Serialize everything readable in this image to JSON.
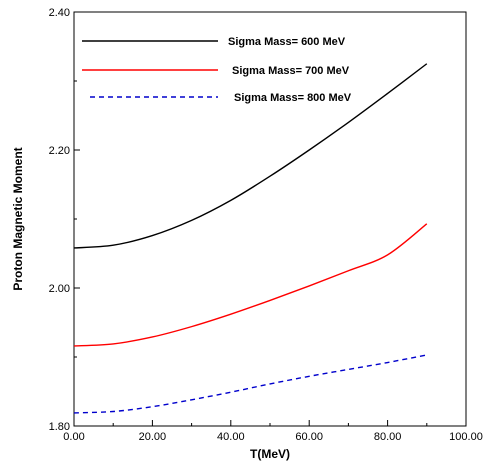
{
  "chart_data": {
    "type": "line",
    "title": "",
    "xlabel": "T(MeV)",
    "ylabel": "Proton Magnetic Moment",
    "xlim": [
      0,
      100
    ],
    "ylim": [
      1.8,
      2.4
    ],
    "x_ticks": [
      "0.00",
      "20.00",
      "40.00",
      "60.00",
      "80.00",
      "100.00"
    ],
    "y_ticks": [
      "1.80",
      "2.00",
      "2.20",
      "2.40"
    ],
    "grid": false,
    "legend_position": "top-left",
    "x": [
      0,
      10,
      20,
      30,
      40,
      50,
      60,
      70,
      80,
      90
    ],
    "series": [
      {
        "name": "Sigma Mass= 600 MeV",
        "color": "#000000",
        "style": "solid",
        "values": [
          2.058,
          2.062,
          2.076,
          2.098,
          2.127,
          2.162,
          2.2,
          2.24,
          2.282,
          2.325
        ]
      },
      {
        "name": "Sigma Mass= 700 MeV",
        "color": "#ff0000",
        "style": "solid",
        "values": [
          1.916,
          1.919,
          1.929,
          1.944,
          1.962,
          1.982,
          2.003,
          2.025,
          2.048,
          2.093
        ]
      },
      {
        "name": "Sigma Mass= 800 MeV",
        "color": "#0000cc",
        "style": "dashed",
        "values": [
          1.819,
          1.821,
          1.828,
          1.838,
          1.849,
          1.861,
          1.872,
          1.882,
          1.892,
          1.903
        ]
      }
    ]
  }
}
